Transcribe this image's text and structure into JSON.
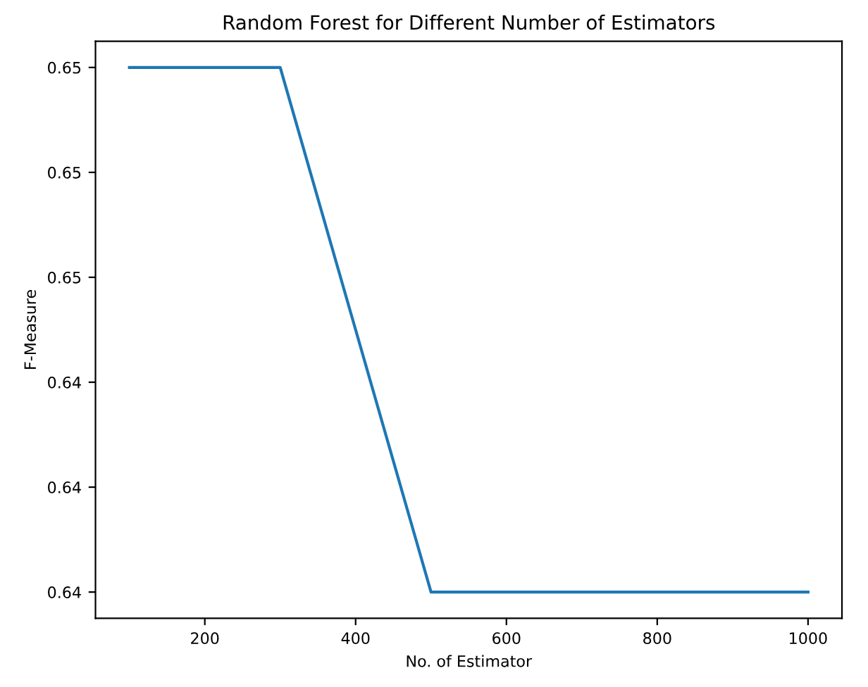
{
  "chart_data": {
    "type": "line",
    "title": "Random Forest for Different Number of Estimators",
    "xlabel": "No. of Estimator",
    "ylabel": "F-Measure",
    "x": [
      100,
      300,
      500,
      1000
    ],
    "series": [
      {
        "color": "#1f77b4",
        "values": [
          0.65,
          0.65,
          0.64,
          0.64
        ]
      }
    ],
    "xlim": [
      55,
      1045
    ],
    "xticks": [
      200,
      400,
      600,
      800,
      1000
    ],
    "ylim": [
      0.6395,
      0.6505
    ],
    "yticks": [
      {
        "value": 0.64,
        "label": "0.64"
      },
      {
        "value": 0.642,
        "label": "0.64"
      },
      {
        "value": 0.644,
        "label": "0.64"
      },
      {
        "value": 0.646,
        "label": "0.65"
      },
      {
        "value": 0.648,
        "label": "0.65"
      },
      {
        "value": 0.65,
        "label": "0.65"
      }
    ],
    "grid": false,
    "legend": false
  }
}
